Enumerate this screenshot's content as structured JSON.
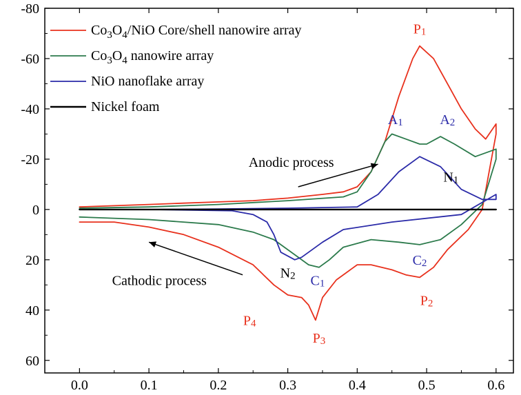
{
  "chart_data": {
    "type": "line",
    "title": "",
    "xlabel": "",
    "ylabel": "",
    "xlim": [
      -0.05,
      0.625
    ],
    "ylim": [
      65,
      -80
    ],
    "y_inverted": true,
    "x_ticks": [
      "0.0",
      "0.1",
      "0.2",
      "0.3",
      "0.4",
      "0.5",
      "0.6"
    ],
    "x_tick_values": [
      0,
      0.1,
      0.2,
      0.3,
      0.4,
      0.5,
      0.6
    ],
    "y_ticks": [
      "-80",
      "-60",
      "-40",
      "-20",
      "0",
      "20",
      "40",
      "60"
    ],
    "y_tick_values": [
      -80,
      -60,
      -40,
      -20,
      0,
      20,
      40,
      60
    ],
    "legend": {
      "placement": "top-left",
      "entries": [
        {
          "pre": "Co",
          "sub1": "3",
          "mid": "O",
          "sub2": "4",
          "post": "/NiO Core/shell nanowire array"
        },
        {
          "pre": "Co",
          "sub1": "3",
          "mid": "O",
          "sub2": "4",
          "post": " nanowire array"
        },
        {
          "pre": "NiO nanoflake array",
          "sub1": "",
          "mid": "",
          "sub2": "",
          "post": ""
        },
        {
          "pre": "Nickel foam",
          "sub1": "",
          "mid": "",
          "sub2": "",
          "post": ""
        }
      ]
    },
    "series": [
      {
        "name": "Co3O4/NiO Core/shell nanowire array",
        "color": "#e8301c",
        "x": [
          0.0,
          0.05,
          0.1,
          0.15,
          0.2,
          0.25,
          0.3,
          0.35,
          0.38,
          0.4,
          0.42,
          0.44,
          0.46,
          0.48,
          0.49,
          0.51,
          0.53,
          0.55,
          0.57,
          0.585,
          0.6,
          0.6,
          0.58,
          0.56,
          0.53,
          0.51,
          0.49,
          0.47,
          0.45,
          0.42,
          0.4,
          0.37,
          0.35,
          0.34,
          0.33,
          0.32,
          0.3,
          0.28,
          0.25,
          0.2,
          0.15,
          0.1,
          0.05,
          0.0
        ],
        "y": [
          -1,
          -1.5,
          -2,
          -2.5,
          -3,
          -3.5,
          -4.5,
          -6,
          -7,
          -9,
          -15,
          -27,
          -45,
          -60,
          -65,
          -60,
          -50,
          -40,
          -32,
          -28,
          -34,
          -30,
          0,
          8,
          16,
          23,
          27,
          26,
          24,
          22,
          22,
          28,
          35,
          44,
          38,
          35,
          34,
          30,
          22,
          15,
          10,
          7,
          5,
          5
        ]
      },
      {
        "name": "Co3O4 nanowire array",
        "color": "#2b7a4b",
        "x": [
          0.0,
          0.1,
          0.2,
          0.3,
          0.38,
          0.4,
          0.42,
          0.44,
          0.45,
          0.47,
          0.49,
          0.5,
          0.52,
          0.54,
          0.57,
          0.6,
          0.6,
          0.58,
          0.55,
          0.52,
          0.49,
          0.46,
          0.42,
          0.38,
          0.36,
          0.345,
          0.33,
          0.31,
          0.28,
          0.25,
          0.2,
          0.1,
          0.0
        ],
        "y": [
          -0.5,
          -1,
          -2,
          -3.5,
          -5,
          -7,
          -15,
          -27,
          -30,
          -28,
          -26,
          -26,
          -29,
          -26,
          -21,
          -24,
          -20,
          -2,
          6,
          12,
          14,
          13,
          12,
          15,
          20,
          23,
          22,
          18,
          12,
          9,
          6,
          4,
          3
        ]
      },
      {
        "name": "NiO nanoflake array",
        "color": "#2a2aa8",
        "x": [
          0.0,
          0.1,
          0.2,
          0.3,
          0.4,
          0.43,
          0.46,
          0.49,
          0.52,
          0.55,
          0.58,
          0.6,
          0.6,
          0.55,
          0.45,
          0.38,
          0.35,
          0.32,
          0.31,
          0.29,
          0.28,
          0.27,
          0.25,
          0.22,
          0.1,
          0.0
        ],
        "y": [
          0,
          0,
          -0.2,
          -0.5,
          -1,
          -6,
          -15,
          -21,
          -17,
          -8,
          -4,
          -4,
          -6,
          2,
          5,
          8,
          13,
          19,
          20,
          17,
          10,
          5,
          2,
          0.5,
          0,
          0
        ]
      },
      {
        "name": "Nickel foam",
        "color": "#000000",
        "x": [
          0.0,
          0.1,
          0.2,
          0.3,
          0.4,
          0.5,
          0.6
        ],
        "y": [
          0,
          0,
          0,
          0,
          0,
          0,
          0
        ]
      }
    ],
    "annotations": [
      {
        "text": "P1",
        "x": 0.49,
        "y": -70,
        "color": "#e8301c"
      },
      {
        "text": "A1",
        "x": 0.455,
        "y": -34,
        "color": "#2a2aa8"
      },
      {
        "text": "A2",
        "x": 0.53,
        "y": -34,
        "color": "#2a2aa8"
      },
      {
        "text": "N1",
        "x": 0.535,
        "y": -11,
        "color": "#000000"
      },
      {
        "text": "N2",
        "x": 0.3,
        "y": 27,
        "color": "#000000"
      },
      {
        "text": "C1",
        "x": 0.343,
        "y": 30,
        "color": "#2a2aa8"
      },
      {
        "text": "C2",
        "x": 0.49,
        "y": 22,
        "color": "#2a2aa8"
      },
      {
        "text": "P2",
        "x": 0.5,
        "y": 38,
        "color": "#e8301c"
      },
      {
        "text": "P4",
        "x": 0.245,
        "y": 46,
        "color": "#e8301c"
      },
      {
        "text": "P3",
        "x": 0.345,
        "y": 53,
        "color": "#e8301c"
      },
      {
        "text": "Anodic process",
        "x": 0.305,
        "y": -17,
        "color": "#000000"
      },
      {
        "text": "Cathodic process",
        "x": 0.115,
        "y": 30,
        "color": "#000000"
      }
    ],
    "arrows": [
      {
        "from": [
          0.315,
          -9
        ],
        "to": [
          0.43,
          -18
        ]
      },
      {
        "from": [
          0.235,
          26
        ],
        "to": [
          0.1,
          13
        ]
      }
    ]
  }
}
